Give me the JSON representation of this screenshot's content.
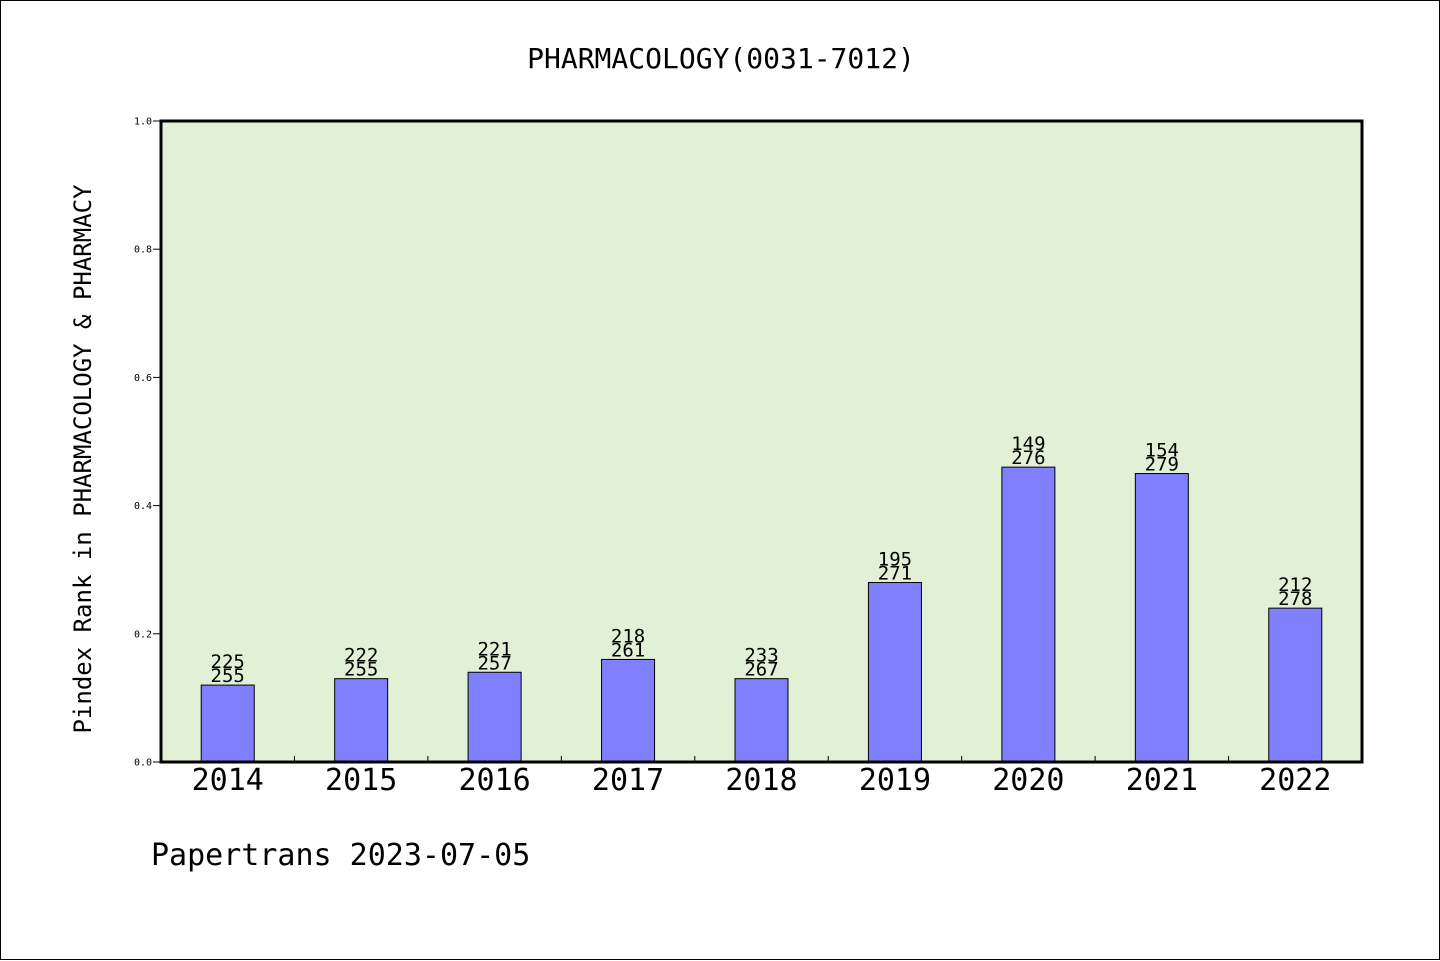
{
  "chart_data": {
    "type": "bar",
    "title": "PHARMACOLOGY(0031-7012)",
    "xlabel": "",
    "ylabel": "Pindex Rank in PHARMACOLOGY & PHARMACY",
    "ylim": [
      0,
      1.0
    ],
    "yticks": [
      "0.0",
      "0.2",
      "0.4",
      "0.6",
      "0.8",
      "1.0"
    ],
    "categories": [
      "2014",
      "2015",
      "2016",
      "2017",
      "2018",
      "2019",
      "2020",
      "2021",
      "2022"
    ],
    "values": [
      0.12,
      0.13,
      0.14,
      0.16,
      0.13,
      0.28,
      0.46,
      0.45,
      0.24
    ],
    "labels_top": [
      "225",
      "222",
      "221",
      "218",
      "233",
      "195",
      "149",
      "154",
      "212"
    ],
    "labels_bottom": [
      "255",
      "255",
      "257",
      "261",
      "267",
      "271",
      "276",
      "279",
      "278"
    ],
    "grid": false,
    "legend": "none",
    "colors": {
      "plot_background": "#e2f0d6",
      "bar_fill": "#8080ff",
      "bar_stroke": "#000000",
      "text": "#000000"
    }
  },
  "footer": {
    "credit": "Papertrans 2023-07-05"
  }
}
